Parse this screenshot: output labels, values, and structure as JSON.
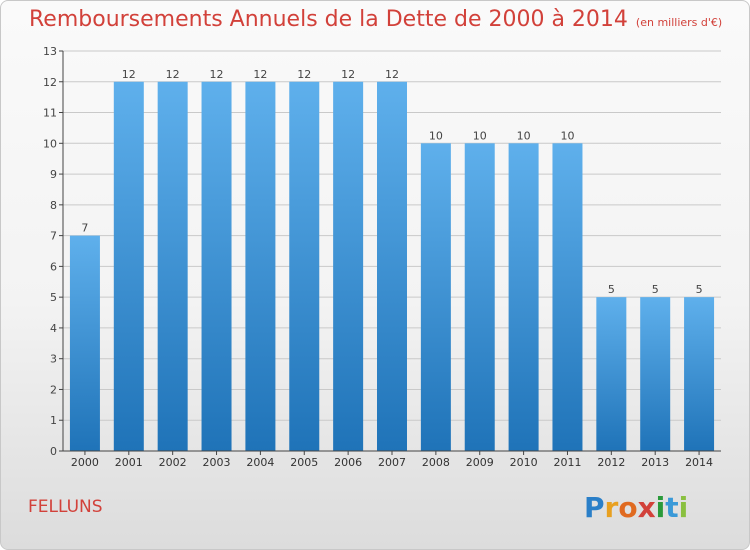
{
  "header": {
    "title": "Remboursements Annuels de la Dette de 2000 à 2014",
    "unit": "(en milliers d'€)"
  },
  "commune": "FELLUNS",
  "logo": {
    "text": "Proxiti",
    "letters": [
      {
        "char": "P",
        "color": "#2a7fc8"
      },
      {
        "char": "r",
        "color": "#e8a020"
      },
      {
        "char": "o",
        "color": "#e06a20"
      },
      {
        "char": "x",
        "color": "#d2413a"
      },
      {
        "char": "i",
        "color": "#2a9a3a"
      },
      {
        "char": "t",
        "color": "#3a9ad8"
      },
      {
        "char": "i",
        "color": "#8ac040"
      }
    ]
  },
  "colors": {
    "bar_light": "#5fb0ec",
    "bar_dark": "#1f73b8",
    "title": "#d2413a",
    "grid": "#c9c9c9",
    "axis": "#444444"
  },
  "chart_data": {
    "type": "bar",
    "title": "Remboursements Annuels de la Dette de 2000 à 2014",
    "xlabel": "",
    "ylabel": "",
    "categories": [
      "2000",
      "2001",
      "2002",
      "2003",
      "2004",
      "2005",
      "2006",
      "2007",
      "2008",
      "2009",
      "2010",
      "2011",
      "2012",
      "2013",
      "2014"
    ],
    "values": [
      7,
      12,
      12,
      12,
      12,
      12,
      12,
      12,
      10,
      10,
      10,
      10,
      5,
      5,
      5
    ],
    "ylim": [
      0,
      13
    ],
    "yticks": [
      0,
      1,
      2,
      3,
      4,
      5,
      6,
      7,
      8,
      9,
      10,
      11,
      12,
      13
    ],
    "grid": true,
    "data_labels": true
  }
}
